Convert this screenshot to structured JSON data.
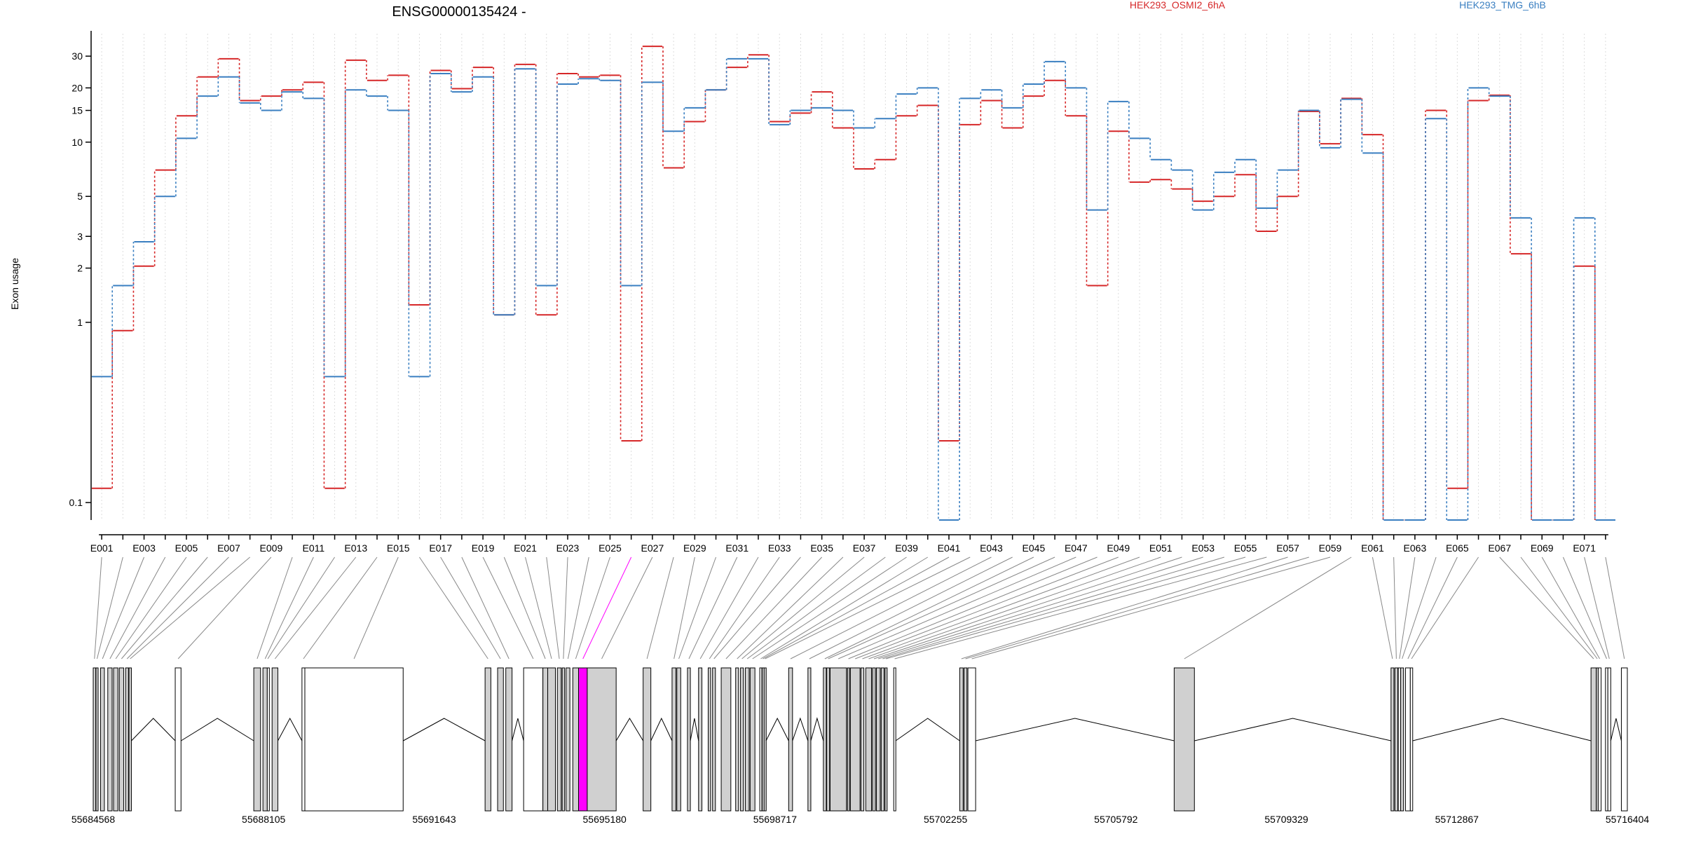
{
  "chart_data": {
    "type": "line",
    "title": "ENSG00000135424 -",
    "ylabel": "Exon usage",
    "y_scale": "log",
    "ylim": [
      0.08,
      40
    ],
    "y_ticks": [
      0.1,
      1,
      2,
      3,
      5,
      10,
      15,
      20,
      30
    ],
    "y_tick_labels": [
      "0.1",
      "1",
      "2",
      "3",
      "5",
      "10",
      "15",
      "20",
      "30"
    ],
    "grid": "vertical dotted lines at each exon",
    "legend_position": "top, in header",
    "exons": [
      "E001",
      "E002",
      "E003",
      "E004",
      "E005",
      "E006",
      "E007",
      "E008",
      "E009",
      "E010",
      "E011",
      "E012",
      "E013",
      "E014",
      "E015",
      "E016",
      "E017",
      "E018",
      "E019",
      "E020",
      "E021",
      "E022",
      "E023",
      "E024",
      "E025",
      "E026",
      "E027",
      "E028",
      "E029",
      "E030",
      "E031",
      "E032",
      "E033",
      "E034",
      "E035",
      "E036",
      "E037",
      "E038",
      "E039",
      "E040",
      "E041",
      "E042",
      "E043",
      "E044",
      "E045",
      "E046",
      "E047",
      "E048",
      "E049",
      "E050",
      "E051",
      "E052",
      "E053",
      "E054",
      "E055",
      "E056",
      "E057",
      "E058",
      "E059",
      "E060",
      "E061",
      "E062",
      "E063",
      "E064",
      "E065",
      "E066",
      "E067",
      "E068",
      "E069",
      "E070",
      "E071",
      "E072"
    ],
    "exon_labels_shown": [
      "E001",
      "E003",
      "E005",
      "E007",
      "E009",
      "E011",
      "E013",
      "E015",
      "E017",
      "E019",
      "E021",
      "E023",
      "E025",
      "E027",
      "E029",
      "E031",
      "E033",
      "E035",
      "E037",
      "E039",
      "E041",
      "E043",
      "E045",
      "E047",
      "E049",
      "E051",
      "E053",
      "E055",
      "E057",
      "E059",
      "E061",
      "E063",
      "E065",
      "E067",
      "E069",
      "E071"
    ],
    "series": [
      {
        "name": "HEK293_OSMI2_6hA",
        "color": "#d62728",
        "values": [
          0.12,
          0.9,
          2.05,
          7,
          14,
          23,
          29,
          17,
          18,
          19.5,
          21.5,
          0.12,
          28.5,
          22,
          23.5,
          1.25,
          25,
          19.8,
          26,
          1.1,
          27,
          1.1,
          24,
          23,
          23.5,
          0.22,
          34,
          7.2,
          13,
          19.5,
          26,
          30.5,
          13,
          14.5,
          19,
          12,
          7.1,
          8,
          14,
          16,
          0.22,
          12.5,
          17,
          12,
          18,
          22,
          14,
          1.6,
          11.5,
          6,
          6.2,
          5.5,
          4.7,
          5,
          6.6,
          3.2,
          5,
          14.8,
          9.8,
          17.5,
          11,
          0.08,
          0.08,
          15,
          0.12,
          17,
          18.2,
          2.4,
          0.08,
          0.08,
          2.05,
          0.08
        ]
      },
      {
        "name": "HEK293_TMG_6hB",
        "color": "#3a7fc1",
        "values": [
          0.5,
          1.6,
          2.8,
          5,
          10.5,
          18,
          23,
          16.5,
          15,
          19,
          17.5,
          0.5,
          19.5,
          18,
          15,
          0.5,
          24,
          19,
          23,
          1.1,
          25.5,
          1.6,
          21,
          22.5,
          22,
          1.6,
          21.5,
          11.5,
          15.5,
          19.5,
          29,
          29,
          12.5,
          15,
          15.5,
          15,
          12,
          13.5,
          18.5,
          20,
          0.08,
          17.5,
          19.5,
          15.5,
          21,
          28,
          20,
          4.2,
          16.8,
          10.5,
          8,
          7,
          4.2,
          6.8,
          8,
          4.3,
          7,
          15,
          9.3,
          17.3,
          8.7,
          0.08,
          0.08,
          13.5,
          0.08,
          20,
          18,
          3.8,
          0.08,
          0.08,
          3.8,
          0.08
        ]
      }
    ]
  },
  "gene_model": {
    "coordinate_labels": [
      "55684568",
      "55688105",
      "55691643",
      "55695180",
      "55698717",
      "55702255",
      "55705792",
      "55709329",
      "55712867",
      "55716404"
    ],
    "genomic_range": [
      55684568,
      55716404
    ],
    "highlight_exon": "E026",
    "highlight_color": "#ff00ff",
    "exons": [
      {
        "id": "E001",
        "start": 55684568,
        "end": 55684620,
        "type": "coding"
      },
      {
        "id": "E002",
        "start": 55684625,
        "end": 55684670,
        "type": "coding"
      },
      {
        "id": "E003",
        "start": 55684720,
        "end": 55684800,
        "type": "coding"
      },
      {
        "id": "E004",
        "start": 55684870,
        "end": 55684960,
        "type": "coding"
      },
      {
        "id": "E005",
        "start": 55684990,
        "end": 55685080,
        "type": "coding"
      },
      {
        "id": "E006",
        "start": 55685110,
        "end": 55685200,
        "type": "coding"
      },
      {
        "id": "E007",
        "start": 55685240,
        "end": 55685300,
        "type": "coding"
      },
      {
        "id": "E008",
        "start": 55685310,
        "end": 55685360,
        "type": "coding"
      },
      {
        "id": "E009",
        "start": 55686270,
        "end": 55686390,
        "type": "noncoding"
      },
      {
        "id": "E010",
        "start": 55687900,
        "end": 55688040,
        "type": "coding"
      },
      {
        "id": "E011",
        "start": 55688090,
        "end": 55688180,
        "type": "coding"
      },
      {
        "id": "E012",
        "start": 55688180,
        "end": 55688200,
        "type": "noncoding"
      },
      {
        "id": "E013",
        "start": 55688280,
        "end": 55688400,
        "type": "coding"
      },
      {
        "id": "E014",
        "start": 55688900,
        "end": 55688960,
        "type": "noncoding"
      },
      {
        "id": "E015",
        "start": 55688960,
        "end": 55691000,
        "type": "noncoding"
      },
      {
        "id": "E016",
        "start": 55692700,
        "end": 55692820,
        "type": "coding"
      },
      {
        "id": "E017",
        "start": 55692960,
        "end": 55693080,
        "type": "coding"
      },
      {
        "id": "E018",
        "start": 55693130,
        "end": 55693260,
        "type": "coding"
      },
      {
        "id": "E019",
        "start": 55693500,
        "end": 55693900,
        "type": "noncoding"
      },
      {
        "id": "E020",
        "start": 55693900,
        "end": 55694000,
        "type": "coding"
      },
      {
        "id": "E021",
        "start": 55694000,
        "end": 55694160,
        "type": "coding"
      },
      {
        "id": "E022",
        "start": 55694200,
        "end": 55694280,
        "type": "coding"
      },
      {
        "id": "E023",
        "start": 55694300,
        "end": 55694350,
        "type": "coding"
      },
      {
        "id": "E024",
        "start": 55694380,
        "end": 55694460,
        "type": "coding"
      },
      {
        "id": "E025",
        "start": 55694520,
        "end": 55694640,
        "type": "coding"
      },
      {
        "id": "E026",
        "start": 55694640,
        "end": 55694820,
        "type": "highlight"
      },
      {
        "id": "E027",
        "start": 55694820,
        "end": 55695420,
        "type": "coding"
      },
      {
        "id": "E028",
        "start": 55695980,
        "end": 55696140,
        "type": "coding"
      },
      {
        "id": "E029",
        "start": 55696580,
        "end": 55696660,
        "type": "coding"
      },
      {
        "id": "E030",
        "start": 55696680,
        "end": 55696760,
        "type": "coding"
      },
      {
        "id": "E031",
        "start": 55696900,
        "end": 55696960,
        "type": "coding"
      },
      {
        "id": "E032",
        "start": 55697130,
        "end": 55697200,
        "type": "coding"
      },
      {
        "id": "E033",
        "start": 55697330,
        "end": 55697380,
        "type": "coding"
      },
      {
        "id": "E034",
        "start": 55697420,
        "end": 55697480,
        "type": "coding"
      },
      {
        "id": "E035",
        "start": 55697600,
        "end": 55697800,
        "type": "coding"
      },
      {
        "id": "E036",
        "start": 55697900,
        "end": 55697960,
        "type": "coding"
      },
      {
        "id": "E037",
        "start": 55698000,
        "end": 55698060,
        "type": "coding"
      },
      {
        "id": "E038",
        "start": 55698100,
        "end": 55698180,
        "type": "coding"
      },
      {
        "id": "E039",
        "start": 55698200,
        "end": 55698300,
        "type": "coding"
      },
      {
        "id": "E040",
        "start": 55698400,
        "end": 55698440,
        "type": "noncoding"
      },
      {
        "id": "E041",
        "start": 55698450,
        "end": 55698480,
        "type": "coding"
      },
      {
        "id": "E042",
        "start": 55698490,
        "end": 55698530,
        "type": "coding"
      },
      {
        "id": "E043",
        "start": 55699000,
        "end": 55699080,
        "type": "coding"
      },
      {
        "id": "E044",
        "start": 55699400,
        "end": 55699460,
        "type": "coding"
      },
      {
        "id": "E045",
        "start": 55699720,
        "end": 55699780,
        "type": "coding"
      },
      {
        "id": "E046",
        "start": 55699790,
        "end": 55699850,
        "type": "coding"
      },
      {
        "id": "E047",
        "start": 55699860,
        "end": 55700200,
        "type": "coding"
      },
      {
        "id": "E048",
        "start": 55700220,
        "end": 55700260,
        "type": "coding"
      },
      {
        "id": "E049",
        "start": 55700280,
        "end": 55700480,
        "type": "coding"
      },
      {
        "id": "E050",
        "start": 55700500,
        "end": 55700560,
        "type": "coding"
      },
      {
        "id": "E051",
        "start": 55700600,
        "end": 55700720,
        "type": "coding"
      },
      {
        "id": "E052",
        "start": 55700740,
        "end": 55700800,
        "type": "coding"
      },
      {
        "id": "E053",
        "start": 55700820,
        "end": 55700900,
        "type": "coding"
      },
      {
        "id": "E054",
        "start": 55700920,
        "end": 55700980,
        "type": "coding"
      },
      {
        "id": "E055",
        "start": 55701000,
        "end": 55701040,
        "type": "coding"
      },
      {
        "id": "E056",
        "start": 55701180,
        "end": 55701220,
        "type": "noncoding"
      },
      {
        "id": "E057",
        "start": 55702550,
        "end": 55702620,
        "type": "coding"
      },
      {
        "id": "E058",
        "start": 55702640,
        "end": 55702700,
        "type": "coding"
      },
      {
        "id": "E059",
        "start": 55702720,
        "end": 55702880,
        "type": "noncoding"
      },
      {
        "id": "E060",
        "start": 55707000,
        "end": 55707420,
        "type": "coding"
      },
      {
        "id": "E061",
        "start": 55711500,
        "end": 55711560,
        "type": "coding"
      },
      {
        "id": "E062",
        "start": 55711580,
        "end": 55711640,
        "type": "coding"
      },
      {
        "id": "E063",
        "start": 55711650,
        "end": 55711700,
        "type": "noncoding"
      },
      {
        "id": "E064",
        "start": 55711700,
        "end": 55711760,
        "type": "coding"
      },
      {
        "id": "E065",
        "start": 55711800,
        "end": 55711900,
        "type": "noncoding"
      },
      {
        "id": "E066",
        "start": 55711900,
        "end": 55711950,
        "type": "noncoding"
      },
      {
        "id": "E067",
        "start": 55715650,
        "end": 55715760,
        "type": "coding"
      },
      {
        "id": "E068",
        "start": 55715760,
        "end": 55715800,
        "type": "coding"
      },
      {
        "id": "E069",
        "start": 55715800,
        "end": 55715860,
        "type": "noncoding"
      },
      {
        "id": "E070",
        "start": 55715950,
        "end": 55716000,
        "type": "noncoding"
      },
      {
        "id": "E071",
        "start": 55716000,
        "end": 55716060,
        "type": "noncoding"
      },
      {
        "id": "E072",
        "start": 55716280,
        "end": 55716404,
        "type": "noncoding"
      }
    ]
  },
  "colors": {
    "coding_fill": "#d0d0d0",
    "noncoding_fill": "#ffffff",
    "connector": "#888888",
    "grid": "#dddddd"
  }
}
